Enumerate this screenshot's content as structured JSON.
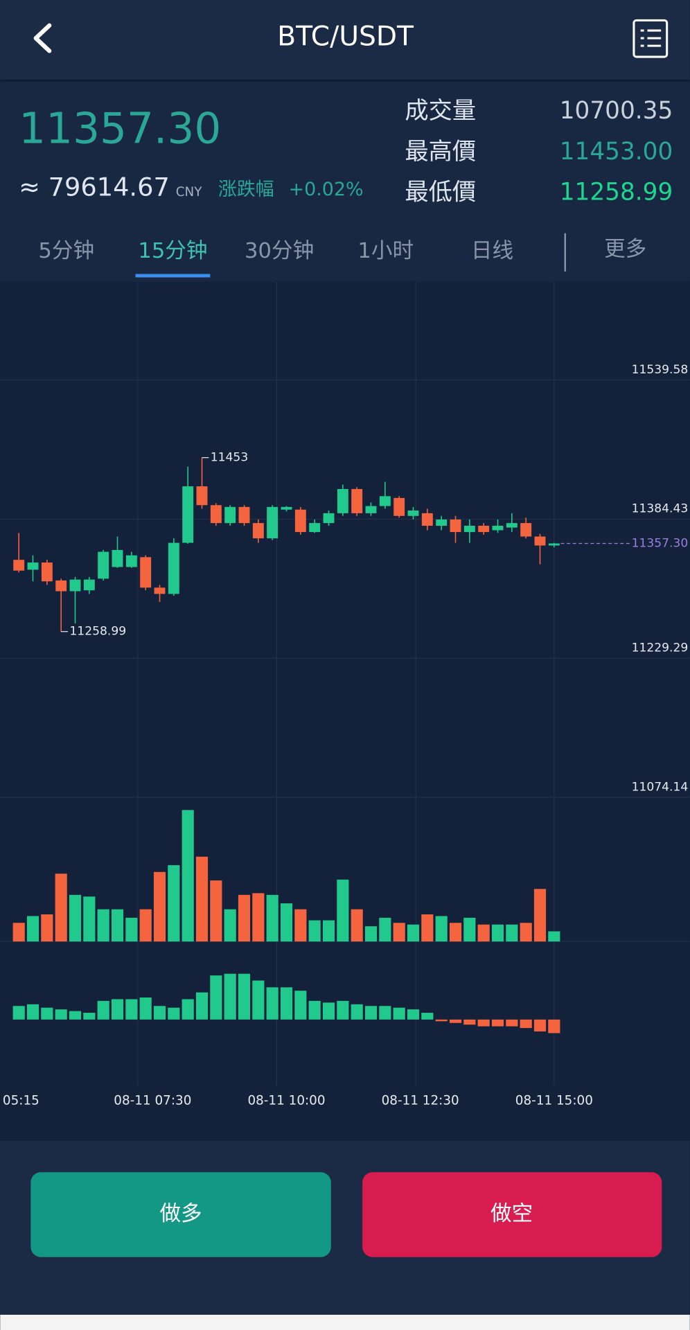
{
  "header": {
    "title": "BTC/USDT"
  },
  "ticker": {
    "price": "11357.30",
    "cny": "≈ 79614.67",
    "cny_unit": "CNY",
    "change_label": "涨跌幅",
    "change": "+0.02%",
    "stats": [
      {
        "label": "成交量",
        "value": "10700.35"
      },
      {
        "label": "最高價",
        "value": "11453.00"
      },
      {
        "label": "最低價",
        "value": "11258.99"
      }
    ]
  },
  "tabs": {
    "items": [
      "5分钟",
      "15分钟",
      "30分钟",
      "1小时",
      "日线"
    ],
    "active": 1,
    "more": "更多"
  },
  "chart_data": {
    "type": "candlestick",
    "open": [
      11339,
      11328,
      11336,
      11316,
      11304,
      11305,
      11318,
      11331,
      11331,
      11342,
      11308,
      11301,
      11358,
      11421,
      11400,
      11380,
      11398,
      11380,
      11363,
      11395,
      11395,
      11370,
      11380,
      11391,
      11418,
      11391,
      11399,
      11408,
      11388,
      11391,
      11377,
      11384,
      11370,
      11377,
      11372,
      11375,
      11380,
      11365,
      11355
    ],
    "high": [
      11369,
      11344,
      11339,
      11318,
      11320,
      11320,
      11350,
      11365,
      11348,
      11344,
      11311,
      11363,
      11443,
      11453,
      11402,
      11400,
      11400,
      11384,
      11400,
      11399,
      11398,
      11384,
      11394,
      11423,
      11420,
      11403,
      11426,
      11410,
      11398,
      11396,
      11388,
      11388,
      11384,
      11380,
      11384,
      11391,
      11386,
      11368,
      11358
    ],
    "low": [
      11325,
      11315,
      11311,
      11258.99,
      11268,
      11301,
      11316,
      11330,
      11330,
      11305,
      11292,
      11299,
      11357,
      11396,
      11377,
      11377,
      11377,
      11358,
      11361,
      11393,
      11367,
      11369,
      11377,
      11388,
      11388,
      11388,
      11396,
      11386,
      11384,
      11372,
      11372,
      11358,
      11358,
      11367,
      11369,
      11370,
      11363,
      11334,
      11353
    ],
    "close": [
      11327,
      11336,
      11315,
      11304,
      11317,
      11317,
      11348,
      11350,
      11344,
      11308,
      11301,
      11358,
      11421,
      11400,
      11380,
      11398,
      11380,
      11363,
      11398,
      11398,
      11370,
      11380,
      11391,
      11418,
      11391,
      11399,
      11410,
      11388,
      11394,
      11377,
      11384,
      11370,
      11377,
      11370,
      11377,
      11380,
      11365,
      11355,
      11357.3
    ],
    "volume": [
      22,
      30,
      32,
      80,
      55,
      53,
      38,
      38,
      28,
      38,
      82,
      90,
      155,
      100,
      72,
      38,
      55,
      57,
      55,
      45,
      38,
      25,
      25,
      73,
      38,
      18,
      28,
      22,
      20,
      32,
      30,
      22,
      28,
      20,
      20,
      20,
      22,
      62,
      12
    ],
    "macd": [
      16,
      18,
      14,
      12,
      10,
      8,
      22,
      24,
      24,
      26,
      16,
      14,
      24,
      32,
      52,
      54,
      54,
      46,
      38,
      38,
      34,
      22,
      20,
      22,
      18,
      16,
      16,
      14,
      12,
      8,
      -2,
      -4,
      -6,
      -8,
      -8,
      -8,
      -10,
      -14,
      -16
    ],
    "up_color": "#22c98c",
    "down_color": "#f4643f",
    "ylim": [
      10913.3,
      11649.32
    ],
    "yticks": [
      11539.58,
      11384.43,
      11229.29,
      11074.14
    ],
    "last": {
      "value": 11357.3,
      "label": "11357.30"
    },
    "high_mark": 11453,
    "low_mark": 11258.99,
    "xticks": [
      "05:15",
      "08-11 07:30",
      "08-11 10:00",
      "08-11 12:30",
      "08-11 15:00"
    ]
  },
  "actions": {
    "long": "做多",
    "short": "做空"
  }
}
